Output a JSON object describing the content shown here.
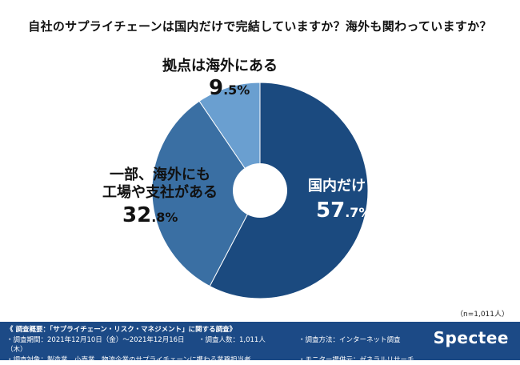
{
  "question": "自社のサプライチェーンは国内だけで完結していますか？海外も関わっていますか？",
  "chart_data": {
    "type": "pie",
    "title": "自社のサプライチェーンは国内だけで完結していますか？海外も関わっていますか？",
    "slices": [
      {
        "label": "国内だけ",
        "value": 57.7,
        "int": "57",
        "dec": ".7%",
        "color": "#1b4a7f"
      },
      {
        "label": "一部、海外にも工場や支社がある",
        "line1": "一部、海外にも",
        "line2": "工場や支社がある",
        "value": 32.8,
        "int": "32",
        "dec": ".8%",
        "color": "#3a6fa3"
      },
      {
        "label": "拠点は海外にある",
        "value": 9.5,
        "int": "9",
        "dec": ".5%",
        "color": "#6a9fd0"
      }
    ],
    "start": "12 o'clock, clockwise",
    "donut": true
  },
  "sample_size": "（n=1,011人）",
  "footer": {
    "title": "《 調査概要：「サプライチェーン・リスク・マネジメント」に関する調査》",
    "period": "・調査期間：2021年12月10日（金）〜2021年12月16日（木）",
    "count": "・調査人数：1,011人",
    "method": "・調査方法：インターネット調査",
    "target": "・調査対象：製造業、小売業、物流企業のサプライチェーンに携わる業務担当者",
    "provider": "・モニター提供元：ゼネラルリサーチ",
    "logo": "Spectee"
  }
}
